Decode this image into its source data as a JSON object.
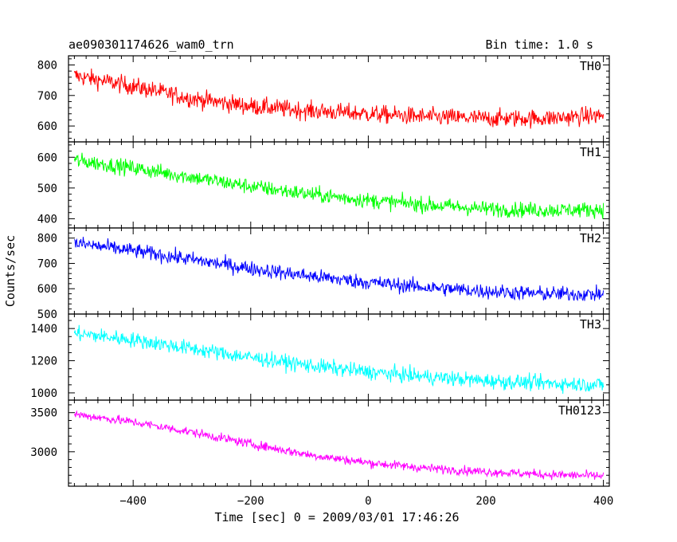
{
  "chart_data": {
    "type": "line",
    "title": "ae090301174626_wam0_trn",
    "bin_time": "Bin time: 1.0 s",
    "xlabel": "Time [sec] 0 = 2009/03/01 17:46:26",
    "ylabel": "Counts/sec",
    "xlim": [
      -510,
      410
    ],
    "xticks": [
      -400,
      -200,
      0,
      200,
      400
    ],
    "panels": [
      {
        "name": "TH0",
        "color": "#ff0000",
        "ylim": [
          548,
          830
        ],
        "yticks": [
          600,
          700,
          800
        ],
        "trend": [
          [
            -500,
            765
          ],
          [
            -400,
            730
          ],
          [
            -300,
            690
          ],
          [
            -200,
            665
          ],
          [
            -100,
            650
          ],
          [
            0,
            640
          ],
          [
            100,
            630
          ],
          [
            200,
            625
          ],
          [
            300,
            625
          ],
          [
            400,
            635
          ]
        ],
        "noise": 28
      },
      {
        "name": "TH1",
        "color": "#00ff00",
        "ylim": [
          370,
          650
        ],
        "yticks": [
          400,
          500,
          600
        ],
        "trend": [
          [
            -500,
            590
          ],
          [
            -400,
            565
          ],
          [
            -300,
            535
          ],
          [
            -200,
            505
          ],
          [
            -100,
            480
          ],
          [
            0,
            460
          ],
          [
            100,
            445
          ],
          [
            200,
            432
          ],
          [
            300,
            428
          ],
          [
            400,
            430
          ]
        ],
        "noise": 24
      },
      {
        "name": "TH2",
        "color": "#0000ff",
        "ylim": [
          500,
          840
        ],
        "yticks": [
          500,
          600,
          700,
          800
        ],
        "trend": [
          [
            -500,
            780
          ],
          [
            -400,
            750
          ],
          [
            -300,
            715
          ],
          [
            -200,
            680
          ],
          [
            -100,
            650
          ],
          [
            0,
            625
          ],
          [
            100,
            605
          ],
          [
            200,
            590
          ],
          [
            300,
            580
          ],
          [
            400,
            578
          ]
        ],
        "noise": 28
      },
      {
        "name": "TH3",
        "color": "#00ffff",
        "ylim": [
          955,
          1490
        ],
        "yticks": [
          1000,
          1200,
          1400
        ],
        "trend": [
          [
            -500,
            1370
          ],
          [
            -400,
            1330
          ],
          [
            -300,
            1275
          ],
          [
            -200,
            1220
          ],
          [
            -100,
            1170
          ],
          [
            0,
            1130
          ],
          [
            100,
            1100
          ],
          [
            200,
            1075
          ],
          [
            300,
            1060
          ],
          [
            400,
            1050
          ]
        ],
        "noise": 45
      },
      {
        "name": "TH0123",
        "color": "#ff00ff",
        "ylim": [
          2560,
          3660
        ],
        "yticks": [
          3000,
          3500
        ],
        "trend": [
          [
            -500,
            3480
          ],
          [
            -400,
            3380
          ],
          [
            -300,
            3250
          ],
          [
            -200,
            3100
          ],
          [
            -100,
            2960
          ],
          [
            0,
            2860
          ],
          [
            100,
            2790
          ],
          [
            200,
            2745
          ],
          [
            300,
            2710
          ],
          [
            400,
            2690
          ]
        ],
        "noise": 55
      }
    ]
  }
}
